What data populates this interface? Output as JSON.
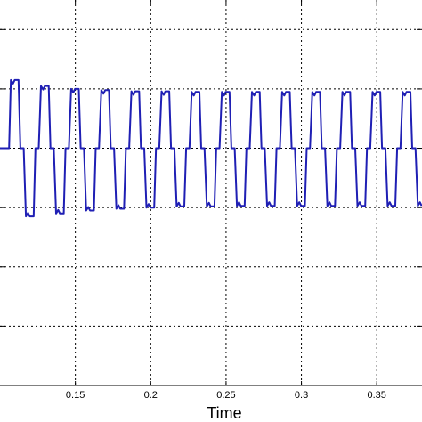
{
  "chart_data": {
    "type": "line",
    "title": "",
    "xlabel": "Time",
    "ylabel": "",
    "xlim": [
      0.1,
      0.38
    ],
    "ylim": [
      -4,
      2.5
    ],
    "grid": true,
    "x_ticks": [
      0.15,
      0.2,
      0.25,
      0.3,
      0.35
    ],
    "x_tick_labels": [
      "0.15",
      "0.2",
      "0.25",
      "0.3",
      "0.35"
    ],
    "y_grid_values": [
      -3,
      -2,
      -1,
      0,
      1,
      2
    ],
    "line_color": "#1f1fb4",
    "series": [
      {
        "period": 0.02,
        "first_positive_edge_x": 0.106,
        "pulse_width": 0.0075,
        "start_level": 0,
        "positive_peaks": [
          1.15,
          1.05,
          1.0,
          0.98,
          0.96,
          0.96,
          0.95,
          0.95,
          0.95,
          0.95,
          0.95,
          0.95,
          0.95,
          0.95
        ],
        "negative_peaks": [
          -1.15,
          -1.1,
          -1.05,
          -1.02,
          -1.0,
          -0.98,
          -0.98,
          -0.97,
          -0.97,
          -0.97,
          -0.97,
          -0.97,
          -0.97,
          -0.97
        ]
      }
    ]
  },
  "axes": {
    "xlabel": "Time",
    "background": "#ffffff",
    "grid_color": "#000000",
    "frame_color": "#000000"
  }
}
